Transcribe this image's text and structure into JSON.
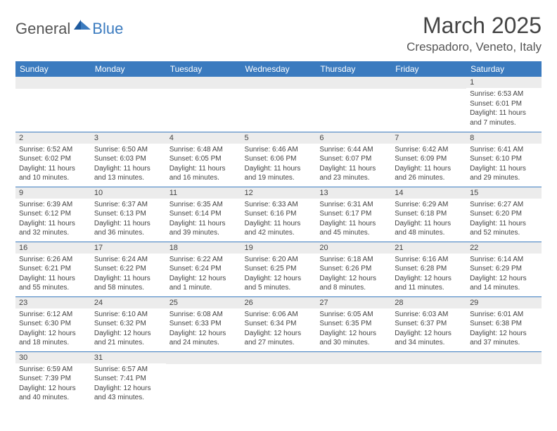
{
  "logo": {
    "text1": "General",
    "text2": "Blue"
  },
  "title": "March 2025",
  "location": "Crespadoro, Veneto, Italy",
  "colors": {
    "header_bg": "#3b7bbf",
    "header_fg": "#ffffff",
    "daynum_bg": "#ececec",
    "border": "#3b7bbf",
    "text": "#444444",
    "logo_accent": "#3b7bbf",
    "logo_gray": "#555555"
  },
  "weekdays": [
    "Sunday",
    "Monday",
    "Tuesday",
    "Wednesday",
    "Thursday",
    "Friday",
    "Saturday"
  ],
  "weeks": [
    [
      null,
      null,
      null,
      null,
      null,
      null,
      {
        "n": "1",
        "sr": "6:53 AM",
        "ss": "6:01 PM",
        "dl": "11 hours and 7 minutes."
      }
    ],
    [
      {
        "n": "2",
        "sr": "6:52 AM",
        "ss": "6:02 PM",
        "dl": "11 hours and 10 minutes."
      },
      {
        "n": "3",
        "sr": "6:50 AM",
        "ss": "6:03 PM",
        "dl": "11 hours and 13 minutes."
      },
      {
        "n": "4",
        "sr": "6:48 AM",
        "ss": "6:05 PM",
        "dl": "11 hours and 16 minutes."
      },
      {
        "n": "5",
        "sr": "6:46 AM",
        "ss": "6:06 PM",
        "dl": "11 hours and 19 minutes."
      },
      {
        "n": "6",
        "sr": "6:44 AM",
        "ss": "6:07 PM",
        "dl": "11 hours and 23 minutes."
      },
      {
        "n": "7",
        "sr": "6:42 AM",
        "ss": "6:09 PM",
        "dl": "11 hours and 26 minutes."
      },
      {
        "n": "8",
        "sr": "6:41 AM",
        "ss": "6:10 PM",
        "dl": "11 hours and 29 minutes."
      }
    ],
    [
      {
        "n": "9",
        "sr": "6:39 AM",
        "ss": "6:12 PM",
        "dl": "11 hours and 32 minutes."
      },
      {
        "n": "10",
        "sr": "6:37 AM",
        "ss": "6:13 PM",
        "dl": "11 hours and 36 minutes."
      },
      {
        "n": "11",
        "sr": "6:35 AM",
        "ss": "6:14 PM",
        "dl": "11 hours and 39 minutes."
      },
      {
        "n": "12",
        "sr": "6:33 AM",
        "ss": "6:16 PM",
        "dl": "11 hours and 42 minutes."
      },
      {
        "n": "13",
        "sr": "6:31 AM",
        "ss": "6:17 PM",
        "dl": "11 hours and 45 minutes."
      },
      {
        "n": "14",
        "sr": "6:29 AM",
        "ss": "6:18 PM",
        "dl": "11 hours and 48 minutes."
      },
      {
        "n": "15",
        "sr": "6:27 AM",
        "ss": "6:20 PM",
        "dl": "11 hours and 52 minutes."
      }
    ],
    [
      {
        "n": "16",
        "sr": "6:26 AM",
        "ss": "6:21 PM",
        "dl": "11 hours and 55 minutes."
      },
      {
        "n": "17",
        "sr": "6:24 AM",
        "ss": "6:22 PM",
        "dl": "11 hours and 58 minutes."
      },
      {
        "n": "18",
        "sr": "6:22 AM",
        "ss": "6:24 PM",
        "dl": "12 hours and 1 minute."
      },
      {
        "n": "19",
        "sr": "6:20 AM",
        "ss": "6:25 PM",
        "dl": "12 hours and 5 minutes."
      },
      {
        "n": "20",
        "sr": "6:18 AM",
        "ss": "6:26 PM",
        "dl": "12 hours and 8 minutes."
      },
      {
        "n": "21",
        "sr": "6:16 AM",
        "ss": "6:28 PM",
        "dl": "12 hours and 11 minutes."
      },
      {
        "n": "22",
        "sr": "6:14 AM",
        "ss": "6:29 PM",
        "dl": "12 hours and 14 minutes."
      }
    ],
    [
      {
        "n": "23",
        "sr": "6:12 AM",
        "ss": "6:30 PM",
        "dl": "12 hours and 18 minutes."
      },
      {
        "n": "24",
        "sr": "6:10 AM",
        "ss": "6:32 PM",
        "dl": "12 hours and 21 minutes."
      },
      {
        "n": "25",
        "sr": "6:08 AM",
        "ss": "6:33 PM",
        "dl": "12 hours and 24 minutes."
      },
      {
        "n": "26",
        "sr": "6:06 AM",
        "ss": "6:34 PM",
        "dl": "12 hours and 27 minutes."
      },
      {
        "n": "27",
        "sr": "6:05 AM",
        "ss": "6:35 PM",
        "dl": "12 hours and 30 minutes."
      },
      {
        "n": "28",
        "sr": "6:03 AM",
        "ss": "6:37 PM",
        "dl": "12 hours and 34 minutes."
      },
      {
        "n": "29",
        "sr": "6:01 AM",
        "ss": "6:38 PM",
        "dl": "12 hours and 37 minutes."
      }
    ],
    [
      {
        "n": "30",
        "sr": "6:59 AM",
        "ss": "7:39 PM",
        "dl": "12 hours and 40 minutes."
      },
      {
        "n": "31",
        "sr": "6:57 AM",
        "ss": "7:41 PM",
        "dl": "12 hours and 43 minutes."
      },
      null,
      null,
      null,
      null,
      null
    ]
  ],
  "labels": {
    "sunrise": "Sunrise:",
    "sunset": "Sunset:",
    "daylight": "Daylight:"
  }
}
